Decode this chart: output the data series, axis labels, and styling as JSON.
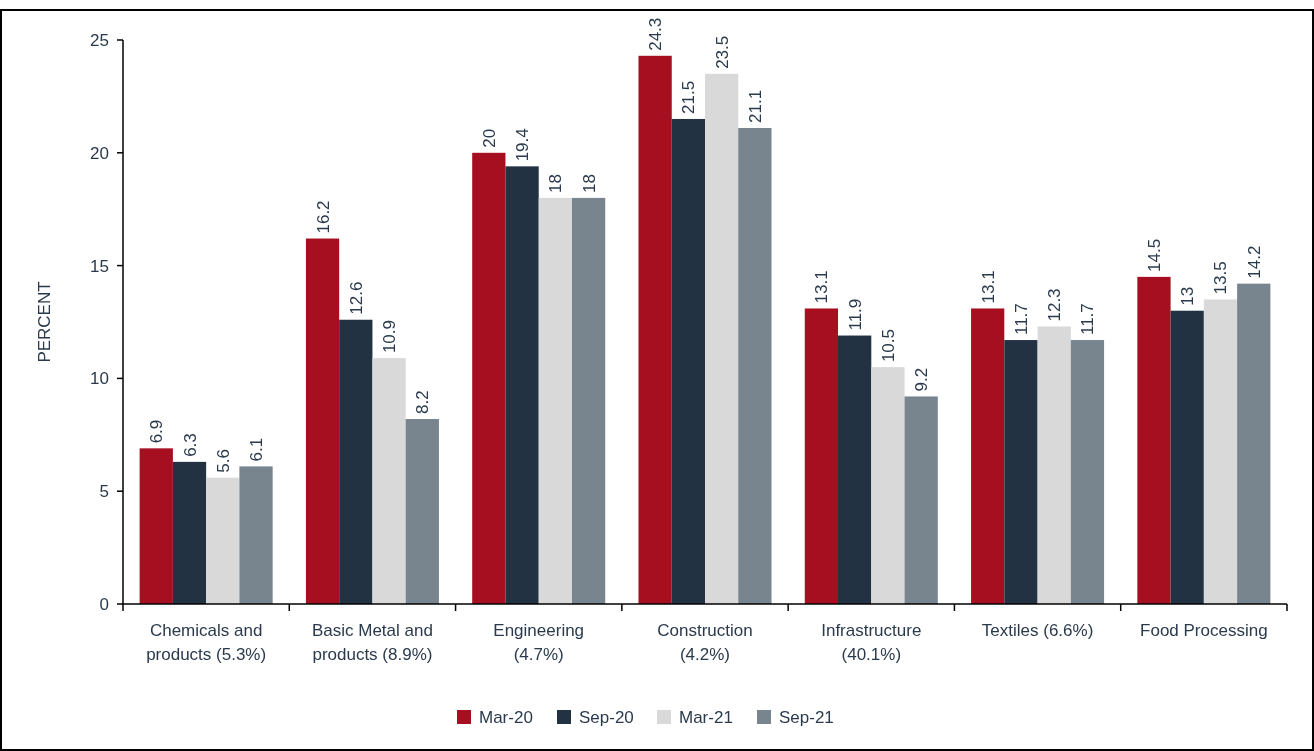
{
  "chart_data": {
    "type": "bar",
    "ylabel": "PERCENT",
    "categories": [
      "Chemicals and products (5.3%)",
      "Basic Metal and products (8.9%)",
      "Engineering (4.7%)",
      "Construction (4.2%)",
      "Infrastructure (40.1%)",
      "Textiles (6.6%)",
      "Food Processing"
    ],
    "series": [
      {
        "name": "Mar-20",
        "color": "#a50f20",
        "values": [
          6.9,
          16.2,
          20,
          24.3,
          13.1,
          13.1,
          14.5
        ]
      },
      {
        "name": "Sep-20",
        "color": "#233243",
        "values": [
          6.3,
          12.6,
          19.4,
          21.5,
          11.9,
          11.7,
          13
        ]
      },
      {
        "name": "Mar-21",
        "color": "#d9d9d9",
        "values": [
          5.6,
          10.9,
          18,
          23.5,
          10.5,
          12.3,
          13.5
        ]
      },
      {
        "name": "Sep-21",
        "color": "#78848e",
        "values": [
          6.1,
          8.2,
          18,
          21.1,
          9.2,
          11.7,
          14.2
        ]
      }
    ],
    "ylim": [
      0,
      25
    ],
    "yticks": [
      0,
      5,
      10,
      15,
      20,
      25
    ],
    "data_labels": true,
    "legend": "bottom",
    "grid": false
  }
}
